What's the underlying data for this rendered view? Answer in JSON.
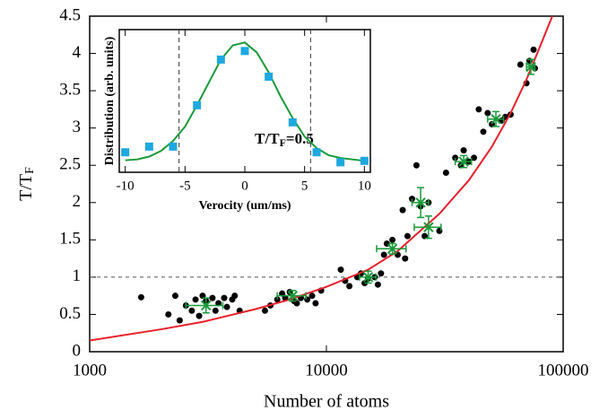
{
  "chart_data": [
    {
      "type": "scatter",
      "xlabel": "Number of atoms",
      "ylabel": [
        "T/T",
        "F"
      ],
      "xscale": "log",
      "xlim": [
        1000,
        100000
      ],
      "ylim": [
        0,
        4.5
      ],
      "xticks": [
        1000,
        10000,
        100000
      ],
      "yticks": [
        0,
        0.5,
        1,
        1.5,
        2,
        2.5,
        3,
        3.5,
        4,
        4.5
      ],
      "hline": 1,
      "series": [
        {
          "type": "points",
          "color": "#000000",
          "x": [
            1650,
            2150,
            2300,
            2400,
            2550,
            2700,
            2800,
            2900,
            3000,
            3100,
            3300,
            3400,
            3500,
            3700,
            3800,
            4000,
            4100,
            4300,
            5500,
            5800,
            6200,
            6500,
            6700,
            7000,
            7300,
            7500,
            7800,
            8300,
            8700,
            9000,
            9500,
            11500,
            12000,
            12500,
            13500,
            14000,
            14500,
            15000,
            16000,
            16500,
            17000,
            17500,
            18000,
            19000,
            20000,
            21000,
            21500,
            22000,
            23000,
            24000,
            25000,
            26000,
            27000,
            30000,
            32000,
            35000,
            37000,
            38000,
            40000,
            42000,
            44000,
            46000,
            48000,
            50000,
            55000,
            57000,
            60000,
            66000,
            70000,
            72000,
            75000,
            76000
          ],
          "values": [
            0.73,
            0.5,
            0.75,
            0.42,
            0.62,
            0.55,
            0.7,
            0.48,
            0.75,
            0.68,
            0.72,
            0.55,
            0.65,
            0.72,
            0.6,
            0.7,
            0.75,
            0.55,
            0.55,
            0.62,
            0.7,
            0.78,
            0.72,
            0.8,
            0.68,
            0.65,
            0.72,
            0.7,
            0.75,
            0.65,
            0.82,
            1.1,
            0.95,
            0.88,
            1.0,
            1.05,
            0.92,
            0.98,
            1.0,
            0.9,
            1.05,
            1.3,
            1.45,
            1.5,
            1.3,
            1.9,
            1.25,
            1.55,
            2.05,
            2.5,
            1.95,
            1.55,
            2.0,
            1.62,
            2.4,
            2.6,
            2.5,
            2.7,
            2.55,
            2.6,
            3.25,
            2.95,
            3.2,
            3.05,
            3.1,
            3.15,
            3.18,
            3.85,
            3.6,
            3.9,
            4.05,
            3.8
          ]
        },
        {
          "type": "line",
          "color": "#e8202a",
          "x": [
            1000,
            2000,
            3000,
            5000,
            7000,
            10000,
            15000,
            20000,
            30000,
            40000,
            50000,
            60000,
            70000,
            80000,
            90000
          ],
          "values": [
            0.15,
            0.3,
            0.4,
            0.57,
            0.7,
            0.87,
            1.1,
            1.35,
            1.85,
            2.3,
            2.75,
            3.2,
            3.65,
            4.1,
            4.5
          ]
        },
        {
          "type": "errorbars",
          "color": "#1a9a3a",
          "x": [
            3100,
            7200,
            15000,
            19000,
            25000,
            27000,
            38000,
            52000,
            73000
          ],
          "values": [
            0.62,
            0.75,
            1.0,
            1.38,
            2.0,
            1.67,
            2.55,
            3.12,
            3.82
          ],
          "xerr": [
            550,
            1000,
            1200,
            2700,
            2000,
            3500,
            3000,
            4000,
            3000
          ],
          "yerr": [
            0.1,
            0.07,
            0.08,
            0.07,
            0.2,
            0.15,
            0.08,
            0.1,
            0.1
          ]
        }
      ]
    },
    {
      "type": "scatter",
      "xlabel": "Verocity (um/ms)",
      "ylabel": [
        "Distribution (arb. units)"
      ],
      "xlim": [
        -10.5,
        10.5
      ],
      "ylim": [
        0,
        1
      ],
      "xticks": [
        -10,
        -5,
        0,
        5,
        10
      ],
      "vlines": [
        -5.5,
        5.5
      ],
      "annotation": [
        "T/T",
        "F",
        "=0.5"
      ],
      "series": [
        {
          "type": "line",
          "color": "#1a9a3a",
          "x": [
            -10,
            -9,
            -8,
            -7,
            -6,
            -5,
            -4,
            -3,
            -2,
            -1,
            0,
            1,
            2,
            3,
            4,
            5,
            6,
            7,
            8,
            9,
            10
          ],
          "values": [
            0.084,
            0.09,
            0.11,
            0.15,
            0.22,
            0.32,
            0.47,
            0.63,
            0.79,
            0.89,
            0.91,
            0.84,
            0.7,
            0.53,
            0.38,
            0.25,
            0.17,
            0.12,
            0.1,
            0.09,
            0.08
          ]
        },
        {
          "type": "squares",
          "color": "#1fa8e0",
          "x": [
            -10,
            -8,
            -6,
            -4,
            -2,
            0,
            2,
            4,
            6,
            8,
            10
          ],
          "values": [
            0.14,
            0.18,
            0.18,
            0.47,
            0.79,
            0.85,
            0.67,
            0.35,
            0.14,
            0.07,
            0.08
          ]
        }
      ]
    }
  ]
}
